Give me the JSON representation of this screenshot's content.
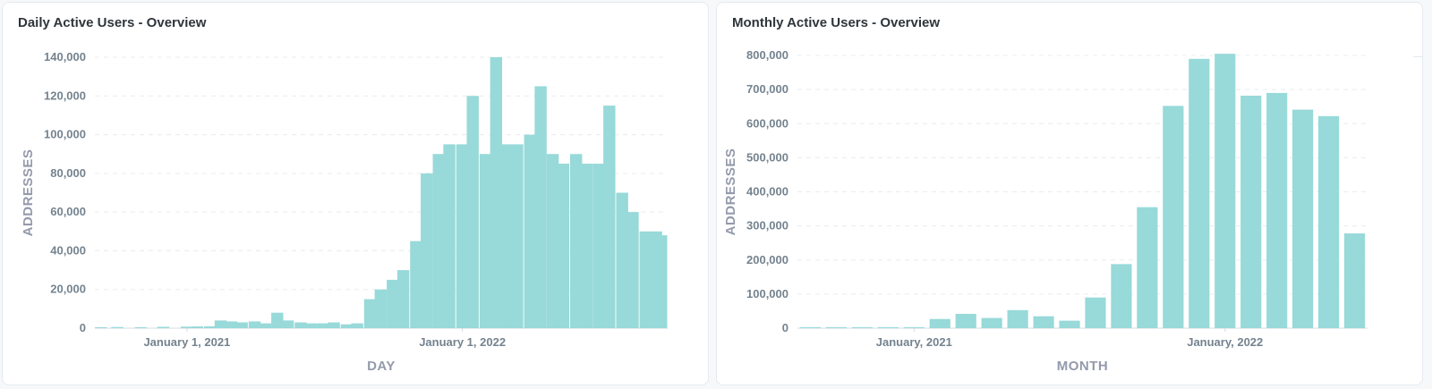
{
  "colors": {
    "bar": "#98d9d9",
    "grid": "#e8ecef",
    "tick": "#74838f",
    "axis_label": "#949aab"
  },
  "chart_data": [
    {
      "type": "bar",
      "title": "Daily Active Users - Overview",
      "xlabel": "DAY",
      "ylabel": "ADDRESSES",
      "ylim": [
        0,
        140000
      ],
      "y_ticks": [
        "0",
        "20,000",
        "40,000",
        "60,000",
        "80,000",
        "100,000",
        "120,000",
        "140,000"
      ],
      "x_ticks": [
        {
          "date": "2021-01-01",
          "label": "January 1, 2021"
        },
        {
          "date": "2022-01-01",
          "label": "January 1, 2022"
        }
      ],
      "x_range": [
        "2020-09-01",
        "2022-09-30"
      ],
      "grid": true,
      "x": [
        "2020-09-01",
        "2020-10-01",
        "2020-11-01",
        "2020-12-01",
        "2021-01-01",
        "2021-01-15",
        "2021-02-01",
        "2021-02-15",
        "2021-03-01",
        "2021-03-15",
        "2021-04-01",
        "2021-04-15",
        "2021-05-01",
        "2021-05-15",
        "2021-06-01",
        "2021-06-15",
        "2021-07-01",
        "2021-07-15",
        "2021-08-01",
        "2021-08-15",
        "2021-09-01",
        "2021-09-15",
        "2021-10-01",
        "2021-10-15",
        "2021-11-01",
        "2021-11-15",
        "2021-12-01",
        "2021-12-15",
        "2022-01-01",
        "2022-01-15",
        "2022-02-01",
        "2022-02-15",
        "2022-03-01",
        "2022-03-15",
        "2022-04-01",
        "2022-04-15",
        "2022-05-01",
        "2022-05-15",
        "2022-06-01",
        "2022-06-15",
        "2022-07-01",
        "2022-07-15",
        "2022-08-01",
        "2022-08-15",
        "2022-09-01",
        "2022-09-15",
        "2022-09-30"
      ],
      "y": [
        500,
        600,
        500,
        700,
        800,
        900,
        1000,
        4000,
        3500,
        3000,
        3500,
        2500,
        8000,
        4000,
        3000,
        2500,
        2500,
        3000,
        2000,
        2500,
        15000,
        20000,
        25000,
        30000,
        45000,
        80000,
        90000,
        95000,
        95000,
        120000,
        90000,
        140000,
        95000,
        95000,
        100000,
        125000,
        90000,
        85000,
        90000,
        85000,
        85000,
        115000,
        70000,
        60000,
        50000,
        50000,
        48000
      ]
    },
    {
      "type": "bar",
      "title": "Monthly Active Users - Overview",
      "xlabel": "MONTH",
      "ylabel": "ADDRESSES",
      "ylim": [
        0,
        800000
      ],
      "y_ticks": [
        "0",
        "100,000",
        "200,000",
        "300,000",
        "400,000",
        "500,000",
        "600,000",
        "700,000",
        "800,000"
      ],
      "x_ticks": [
        {
          "date": "2021-01",
          "label": "January, 2021"
        },
        {
          "date": "2022-01",
          "label": "January, 2022"
        }
      ],
      "grid": true,
      "categories": [
        "2020-09",
        "2020-10",
        "2020-11",
        "2020-12",
        "2021-01",
        "2021-02",
        "2021-03",
        "2021-04",
        "2021-05",
        "2021-06",
        "2021-07",
        "2021-08",
        "2021-09",
        "2021-10",
        "2021-11",
        "2021-12",
        "2022-01",
        "2022-02",
        "2022-03",
        "2022-04",
        "2022-05",
        "2022-06"
      ],
      "values": [
        3000,
        3000,
        3000,
        3000,
        3000,
        27000,
        42000,
        30000,
        53000,
        35000,
        22000,
        90000,
        188000,
        355000,
        652000,
        790000,
        805000,
        682000,
        690000,
        641000,
        622000,
        278000
      ]
    }
  ]
}
